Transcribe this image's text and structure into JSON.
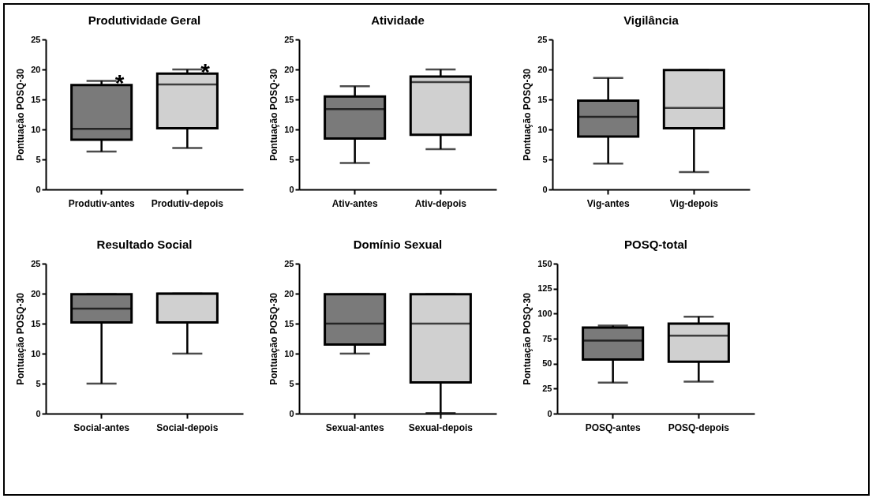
{
  "chart_data": [
    {
      "type": "box",
      "title": "Produtividade Geral",
      "ylabel": "Pontuação POSQ-30",
      "categories": [
        "Produtiv-antes",
        "Produtiv-depois"
      ],
      "colors": [
        "#7a7a7a",
        "#d0d0d0"
      ],
      "ylim": [
        0,
        25
      ],
      "yticks": [
        0,
        5,
        10,
        15,
        20,
        25
      ],
      "boxes": [
        {
          "low": 6.3,
          "q1": 8.3,
          "median": 10.1,
          "q3": 17.4,
          "high": 18.1
        },
        {
          "low": 6.9,
          "q1": 10.2,
          "median": 17.5,
          "q3": 19.3,
          "high": 20.0
        }
      ],
      "annotations": [
        {
          "text": "*",
          "x": "Produtiv-antes",
          "y": 18.1
        },
        {
          "text": "*",
          "x": "Produtiv-depois",
          "y": 20.0
        }
      ]
    },
    {
      "type": "box",
      "title": "Atividade",
      "ylabel": "Pontuação POSQ-30",
      "categories": [
        "Ativ-antes",
        "Ativ-depois"
      ],
      "colors": [
        "#7a7a7a",
        "#d0d0d0"
      ],
      "ylim": [
        0,
        25
      ],
      "yticks": [
        0,
        5,
        10,
        15,
        20,
        25
      ],
      "boxes": [
        {
          "low": 4.4,
          "q1": 8.5,
          "median": 13.4,
          "q3": 15.5,
          "high": 17.2
        },
        {
          "low": 6.7,
          "q1": 9.1,
          "median": 17.9,
          "q3": 18.8,
          "high": 20.0
        }
      ]
    },
    {
      "type": "box",
      "title": "Vigilância",
      "ylabel": "Pontuação POSQ-30",
      "categories": [
        "Vig-antes",
        "Vig-depois"
      ],
      "colors": [
        "#7a7a7a",
        "#d0d0d0"
      ],
      "ylim": [
        0,
        25
      ],
      "yticks": [
        0,
        5,
        10,
        15,
        20,
        25
      ],
      "boxes": [
        {
          "low": 4.3,
          "q1": 8.8,
          "median": 12.1,
          "q3": 14.8,
          "high": 18.6
        },
        {
          "low": 2.9,
          "q1": 10.2,
          "median": 13.6,
          "q3": 19.9,
          "high": 19.9
        }
      ]
    },
    {
      "type": "box",
      "title": "Resultado Social",
      "ylabel": "Pontuação POSQ-30",
      "categories": [
        "Social-antes",
        "Social-depois"
      ],
      "colors": [
        "#7a7a7a",
        "#d0d0d0"
      ],
      "ylim": [
        0,
        25
      ],
      "yticks": [
        0,
        5,
        10,
        15,
        20,
        25
      ],
      "boxes": [
        {
          "low": 5.0,
          "q1": 15.2,
          "median": 17.5,
          "q3": 19.9,
          "high": 19.9
        },
        {
          "low": 10.0,
          "q1": 15.2,
          "median": 20.0,
          "q3": 20.0,
          "high": 20.0
        }
      ]
    },
    {
      "type": "box",
      "title": "Domínio Sexual",
      "ylabel": "Pontuação POSQ-30",
      "categories": [
        "Sexual-antes",
        "Sexual-depois"
      ],
      "colors": [
        "#7a7a7a",
        "#d0d0d0"
      ],
      "ylim": [
        0,
        25
      ],
      "yticks": [
        0,
        5,
        10,
        15,
        20,
        25
      ],
      "boxes": [
        {
          "low": 10.0,
          "q1": 11.5,
          "median": 15.0,
          "q3": 19.9,
          "high": 19.9
        },
        {
          "low": 0.1,
          "q1": 5.2,
          "median": 15.0,
          "q3": 19.9,
          "high": 19.9
        }
      ]
    },
    {
      "type": "box",
      "title": "POSQ-total",
      "ylabel": "Pontuação POSQ-30",
      "categories": [
        "POSQ-antes",
        "POSQ-depois"
      ],
      "colors": [
        "#7a7a7a",
        "#d0d0d0"
      ],
      "ylim": [
        0,
        150
      ],
      "yticks": [
        0,
        25,
        50,
        75,
        100,
        125,
        150
      ],
      "boxes": [
        {
          "low": 31,
          "q1": 54,
          "median": 73,
          "q3": 86,
          "high": 88
        },
        {
          "low": 32,
          "q1": 52,
          "median": 78,
          "q3": 90,
          "high": 97
        }
      ]
    }
  ]
}
